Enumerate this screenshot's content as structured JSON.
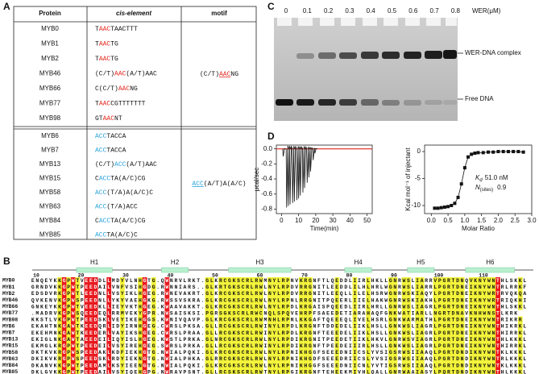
{
  "panels": {
    "a": "A",
    "b": "B",
    "c": "C",
    "d": "D"
  },
  "table": {
    "headers": {
      "protein": "Protein",
      "cis": "cis-element",
      "motif": "motif"
    },
    "groups": [
      {
        "hl_color": "#e3261e",
        "motif": {
          "pre": "(C/T)",
          "hl": "AAC",
          "post": "NG"
        },
        "rows": [
          {
            "protein": "MYB0",
            "pre": "T",
            "hl": "AAC",
            "post": "TAACTTT"
          },
          {
            "protein": "MYB1",
            "pre": "T",
            "hl": "AAC",
            "post": "TG"
          },
          {
            "protein": "MYB2",
            "pre": "T",
            "hl": "AAC",
            "post": "TG"
          },
          {
            "protein": "MYB46",
            "pre": "(C/T)",
            "hl": "AAC",
            "post": "(A/T)AAC"
          },
          {
            "protein": "MYB66",
            "pre": "C(C/T)",
            "hl": "AAC",
            "post": "NG"
          },
          {
            "protein": "MYB77",
            "pre": "T",
            "hl": "AAC",
            "post": "CGTTTTTTT"
          },
          {
            "protein": "MYB98",
            "pre": "GT",
            "hl": "AAC",
            "post": "NT"
          }
        ]
      },
      {
        "hl_color": "#2aa3dc",
        "motif": {
          "hl": "ACC",
          "post": "(A/T)A(A/C)"
        },
        "rows": [
          {
            "protein": "MYB6",
            "hl": "ACC",
            "post": "TACCA"
          },
          {
            "protein": "MYB7",
            "hl": "ACC",
            "post": "TACCA"
          },
          {
            "protein": "MYB13",
            "pre": "(C/T)",
            "hl": "ACC",
            "post": "(A/T)AAC"
          },
          {
            "protein": "MYB15",
            "pre": "C",
            "hl": "ACC",
            "post": "TA(A/C)CG"
          },
          {
            "protein": "MYB58",
            "hl": "ACC",
            "post": "(T/A)A(A/C)C"
          },
          {
            "protein": "MYB63",
            "hl": "ACC",
            "post": "(T/A)ACC"
          },
          {
            "protein": "MYB84",
            "pre": "C",
            "hl": "ACC",
            "post": "TA(A/C)CG"
          },
          {
            "protein": "MYB85",
            "hl": "ACC",
            "post": "TA(A/C)C"
          }
        ]
      }
    ]
  },
  "gel": {
    "lanes": [
      "0",
      "0.1",
      "0.2",
      "0.3",
      "0.4",
      "0.5",
      "0.6",
      "0.7",
      "0.8"
    ],
    "unit": "WER(μM)",
    "complex_label": "WER-DNA complex",
    "free_label": "Free DNA"
  },
  "chart_data": [
    {
      "type": "spikes",
      "ylabel": "μcal/sec",
      "xlabel": "Time(min)",
      "color": "#111111",
      "baseline_color": "#e3261e",
      "x": [
        1,
        3,
        4,
        5,
        6.5,
        7.5,
        9,
        10,
        11,
        12.5,
        13.5,
        15,
        16,
        17,
        18.5,
        19.5
      ],
      "values": [
        -0.1,
        -0.78,
        -0.76,
        -0.74,
        -0.72,
        -0.7,
        -0.68,
        -0.66,
        -0.62,
        -0.58,
        -0.52,
        -0.45,
        -0.38,
        -0.3,
        -0.15,
        -0.06
      ],
      "xlim": [
        -3,
        53
      ],
      "ylim": [
        -0.86,
        0.05
      ],
      "xticks": [
        0,
        10,
        20,
        30,
        40,
        50
      ],
      "yticks": [
        {
          "value": 0,
          "label": "0.0"
        },
        {
          "value": -0.2,
          "label": "-0.2"
        },
        {
          "value": -0.4,
          "label": "-0.4"
        },
        {
          "value": -0.6,
          "label": "-0.6"
        },
        {
          "value": -0.8,
          "label": "-0.8"
        }
      ]
    },
    {
      "type": "scatter",
      "ylabel": "Kcal mol⁻¹ of injectant",
      "xlabel": "Molar Ratio",
      "color": "#111111",
      "x": [
        0.1,
        0.2,
        0.3,
        0.4,
        0.5,
        0.6,
        0.7,
        0.8,
        0.9,
        1.0,
        1.1,
        1.2,
        1.3,
        1.4,
        1.55,
        1.7,
        1.85,
        2.0,
        2.15,
        2.3,
        2.45,
        2.6,
        2.75
      ],
      "values": [
        -10.5,
        -10.5,
        -10.4,
        -10.3,
        -10.2,
        -10.0,
        -9.6,
        -8.5,
        -6.0,
        -3.0,
        -1.0,
        -0.5,
        -0.3,
        -0.2,
        -0.2,
        -0.1,
        -0.1,
        0,
        0,
        0,
        0,
        0,
        -0.1
      ],
      "xlim": [
        -0.2,
        3.0
      ],
      "ylim": [
        -11.5,
        1.2
      ],
      "xticks": [
        {
          "value": 0,
          "label": "0.0"
        },
        {
          "value": 0.5,
          "label": "0.5"
        },
        {
          "value": 1,
          "label": "1.0"
        },
        {
          "value": 1.5,
          "label": "1.5"
        },
        {
          "value": 2,
          "label": "2.0"
        },
        {
          "value": 2.5,
          "label": "2.5"
        },
        {
          "value": 3,
          "label": "3.0"
        }
      ],
      "yticks": [
        0,
        -5,
        -10
      ],
      "annotations": {
        "kd_symbol": "K",
        "kd_sub": "d",
        "kd_value": "51.0 nM",
        "n_symbol": "N",
        "n_sub": "(sites)",
        "n_value": "0.9"
      }
    }
  ],
  "alignment": {
    "conserved_color": "#e8161b",
    "similar_color": "#f3f33a",
    "helix_color": "#b8f0cf",
    "ruler": [
      10,
      20,
      30,
      40,
      50,
      60,
      70,
      80,
      90,
      100,
      110
    ],
    "helices": [
      {
        "label": "H1",
        "start": 19,
        "end": 27
      },
      {
        "label": "H2",
        "start": 38,
        "end": 44
      },
      {
        "label": "H3",
        "start": 53,
        "end": 67
      },
      {
        "label": "H4",
        "start": 79,
        "end": 85
      },
      {
        "label": "H5",
        "start": 93,
        "end": 99
      },
      {
        "label": "H6",
        "start": 106,
        "end": 117
      }
    ],
    "rows": [
      {
        "name": "MYB0",
        "seq": "ENQEYKKGPWTVEEDDLLMDYVLNHGTG.QWNRVLRKT.GLKRCGKSCRLRWMNYLRPNVKRGNFTLQEDDLIIRLHKLLGNRWSLIARRVPGRTDNQVKNYWNTHLSKKL"
      },
      {
        "name": "MYB1",
        "seq": "GRNDVKKGPWTPEEDAILVNFVSIHGDG.RWNNIARS..GLKRTGKSCRLRWLNYLRPDVRRGNITLEEDDLILHLHRLWGNRWSLIARRLPGRTDNEIKNYWNTRLRRKF"
      },
      {
        "name": "MYB2",
        "seq": "EDSDVRKGPWTLEEDNLLVSYIKLHGEG.RWNEVAKRT.GLKRCGKSCRLRWLNYLRPDVRRGNITLEEQLLILELHSRWGNRWSKIAQYLPGRTDNEIKNYWRTRVQKQA"
      },
      {
        "name": "MYB46",
        "seq": "QVKENVKGPWSPEEDNLLYKYVAEHGKG.RWSSVSKRA.GLKRCGKSCRLRWLNYLRPNLRRGNITPQEERLIIELHAKWGNRWSKIAKHLPGRTDNEIKNYWRTRIQKHI"
      },
      {
        "name": "MYB66",
        "seq": "GNKEYKKGPWTVEEDKLLIEYVKTHGEG.KWAAVAKKT.GLKRCGKSCRLRWLNYLRPDLKRGAISPQEEDLIIRLHRLLGNRWSLIAGRLPGRTDNEIKNYWNTHLSKKL"
      },
      {
        "name": "MYB77",
        "seq": ".MADRVKGPWSQEEDEQLRRMVEKYGPR.NWSAISKSI.PGRSGKSCRLRWCNQLSPQVEHRPFSAEEDETIARAHAQFGNKWATIARLLNGRTDNAVKNHWNSTLKRK"
      },
      {
        "name": "MYB98",
        "seq": "KKSTLVKGPWTPEEDSKLVEYIKEHGGS.KWNIVQAVP.GLKRCGKSCRLRWMNHLRPNLKKGAFTQEEEQLIVELHSRLGNKWARMATHLPGRTDNEIKNYWNTRIKRR"
      },
      {
        "name": "MYB6",
        "seq": "EKAHTNKGAWTKEEDQRLIDYIRNHGEG.CWRSLPKSA.GLLRCGKSCRLRWINYLRPDLKRGNFTDDEDELIIKLHSLLGNKWSLIAGRLPGRTDNEIKNYWNTHIKRKL"
      },
      {
        "name": "MYB7",
        "seq": "EKEHMNKGAWTKEEDERLVAYIKSHGEG.CWRSLPRAA.GLLRCGKSCRLRWINYLRPDLKRGNFTEEEDELIIKLHSLLGNKWSLIAGRLPGRTDNEIKNYWNTHIRRKL"
      },
      {
        "name": "MYB13",
        "seq": "EKIGLNKGAWTAEEDEILIQYISLHGEG.KWSTLPRKA.GLNRCGKSCRLRWLNYLRPDIKRGNITPEEDETIIKLHKVLGNRWSVIAGRLPGRTDNEIKNYWNTHLKKKL"
      },
      {
        "name": "MYB15",
        "seq": "EKMGLKRGPWTPEEDEILVSYIREHGEG.SWRSLPRKA.GLLRCGKSCRLRWINYLRPDIKRGNFTPEEDEIIIRLHSLLGNKWSLIAGRLPGRTDNEIKNYWNTHIRRKL"
      },
      {
        "name": "MYB58",
        "seq": "DKTKVKRGPWSPEEDAKLKDFIEKHGTG.NWIALPQKI.GLKRCGKSCRLRWLNYLRPNIKHGGFSEEEDNIICSLYVSIGSRWSIIAAQLPGRTDNDIKNYWNTKLKKKL"
      },
      {
        "name": "MYB63",
        "seq": "DKIKVKRGPWSPEEDSKLRDYIEKNGTG.NWIALPHKA.GLRRCGKSCRLRWLNYLRPNIKHGDFSEEEDRIICSLYVSIGSRWSIIAAQLPGRTDNDIKNYWNTRLKKKL"
      },
      {
        "name": "MYB84",
        "seq": "DKANVKKGPWTPEEDAMLKSYIEENGTG.NWIALPQKI.GLKRCGKSCRLRWLNYLRPNIKHGGFSEEEDNIICNLYVTIGSRWSIIAAQLPGRTDNDIKNYWNTKLKKKL"
      },
      {
        "name": "MYB85",
        "seq": "DKLGVKKGPWTPEEDAILVSYIQEHGPG.NWRAVPSNT.GLLRCSKSCRLRWTNYLRPGIKRGNFTEHEEKMIVHLQALLGNRWAAIASYLPQRTDNDIKNYWNTHLKKKL"
      }
    ]
  }
}
